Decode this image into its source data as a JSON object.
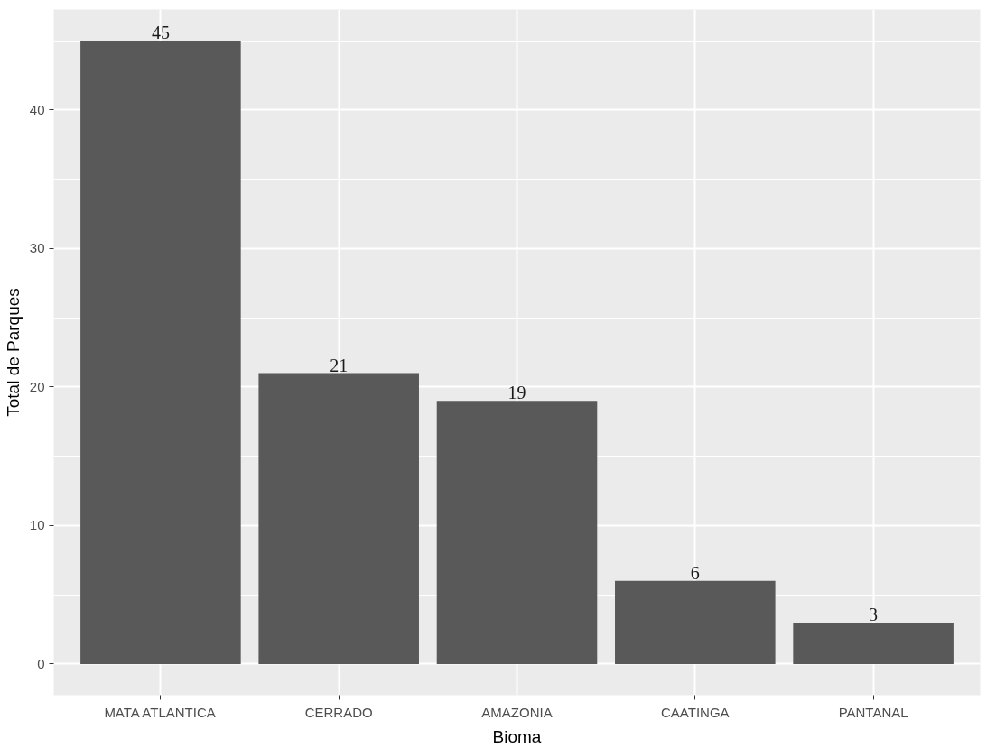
{
  "chart_data": {
    "type": "bar",
    "xlabel": "Bioma",
    "ylabel": "Total de Parques",
    "categories": [
      "MATA ATLANTICA",
      "CERRADO",
      "AMAZONIA",
      "CAATINGA",
      "PANTANAL"
    ],
    "values": [
      45,
      21,
      19,
      6,
      3
    ],
    "color": "#595959",
    "ylim": [
      -2.25,
      47.25
    ],
    "yticks": [
      0,
      10,
      20,
      30,
      40
    ],
    "grid": true,
    "data_labels": true
  }
}
